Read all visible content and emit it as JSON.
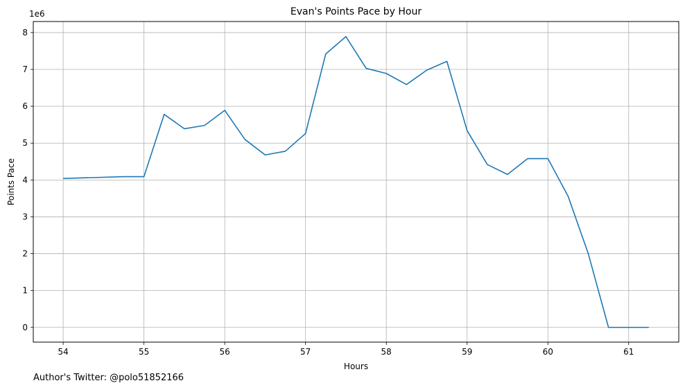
{
  "chart_data": {
    "type": "line",
    "title": "Evan's Points Pace by Hour",
    "xlabel": "Hours",
    "ylabel": "Points Pace",
    "y_offset_label": "1e6",
    "y_scale": 1000000,
    "xlim": [
      53.63,
      61.62
    ],
    "ylim": [
      -0.4,
      8.3
    ],
    "x_ticks": [
      54,
      55,
      56,
      57,
      58,
      59,
      60,
      61
    ],
    "y_ticks": [
      0,
      1,
      2,
      3,
      4,
      5,
      6,
      7,
      8
    ],
    "grid": true,
    "line_color": "#1f77b4",
    "grid_color": "#b0b0b0",
    "series": [
      {
        "x": [
          54.0,
          54.75,
          55.0,
          55.25,
          55.5,
          55.75,
          56.0,
          56.25,
          56.5,
          56.75,
          57.0,
          57.25,
          57.5,
          57.75,
          58.0,
          58.25,
          58.5,
          58.75,
          59.0,
          59.25,
          59.5,
          59.75,
          60.0,
          60.25,
          60.5,
          60.75,
          61.0,
          61.25
        ],
        "y": [
          4.04,
          4.09,
          4.09,
          5.78,
          5.39,
          5.48,
          5.89,
          5.1,
          4.68,
          4.78,
          5.26,
          7.42,
          7.89,
          7.03,
          6.89,
          6.59,
          6.98,
          7.22,
          5.34,
          4.42,
          4.15,
          4.58,
          4.58,
          3.56,
          2.0,
          0.0,
          0.0,
          0.0
        ]
      }
    ]
  },
  "footer": {
    "text": "Author's Twitter: @polo51852166"
  }
}
